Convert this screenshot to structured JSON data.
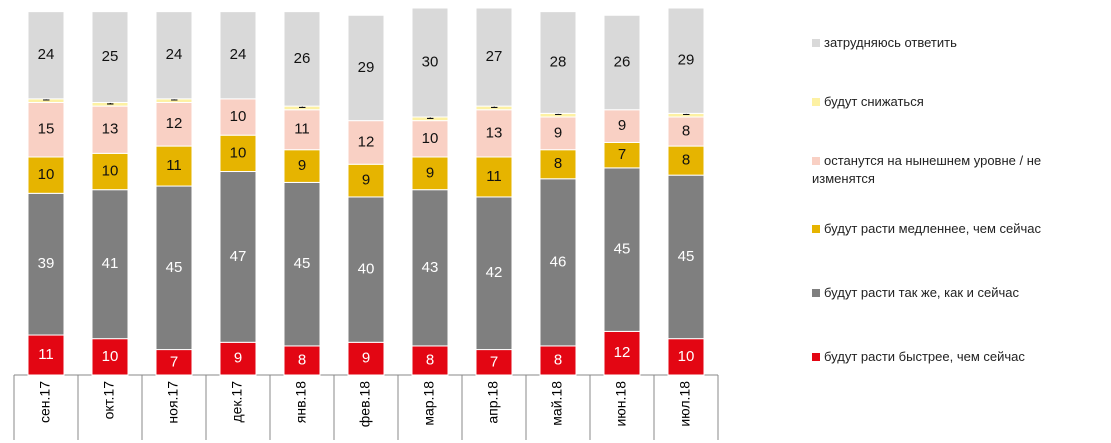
{
  "chart_data": {
    "type": "stacked_bar",
    "categories": [
      "сен.17",
      "окт.17",
      "ноя.17",
      "дек.17",
      "янв.18",
      "фев.18",
      "мар.18",
      "апр.18",
      "май.18",
      "июн.18",
      "июл.18"
    ],
    "series": [
      {
        "name": "будут расти быстрее, чем сейчас",
        "color": "#e30613",
        "values": [
          11,
          10,
          7,
          9,
          8,
          9,
          8,
          7,
          8,
          12,
          10
        ]
      },
      {
        "name": "будут расти так же, как и сейчас",
        "color": "#7f7f7f",
        "values": [
          39,
          41,
          45,
          47,
          45,
          40,
          43,
          42,
          46,
          45,
          45
        ]
      },
      {
        "name": "будут расти медленнее, чем сейчас",
        "color": "#e6b400",
        "values": [
          10,
          10,
          11,
          10,
          9,
          9,
          9,
          11,
          8,
          7,
          8
        ]
      },
      {
        "name": "останутся на нынешнем уровне / не изменятся",
        "color": "#f9d0c4",
        "values": [
          15,
          13,
          12,
          10,
          11,
          12,
          10,
          13,
          9,
          9,
          8
        ]
      },
      {
        "name": "будут снижаться",
        "color": "#fdf1a3",
        "values": [
          1,
          1,
          1,
          0,
          1,
          0,
          1,
          1,
          1,
          0,
          1
        ]
      },
      {
        "name": "затрудняюсь ответить",
        "color": "#d9d9d9",
        "values": [
          24,
          25,
          24,
          24,
          26,
          29,
          30,
          27,
          28,
          26,
          29
        ]
      }
    ],
    "legend": "right"
  }
}
